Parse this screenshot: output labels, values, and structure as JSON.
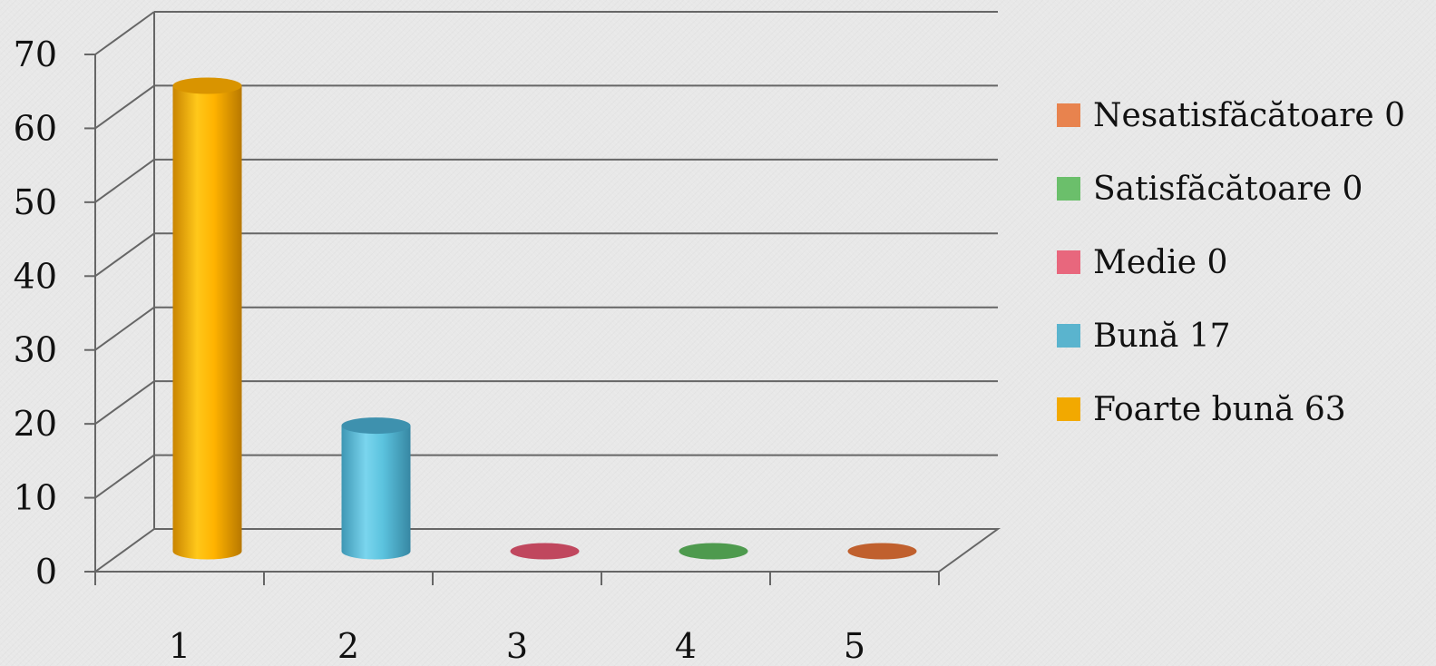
{
  "chart_data": {
    "type": "bar",
    "style": "3d-cylinder",
    "categories": [
      "1",
      "2",
      "3",
      "4",
      "5"
    ],
    "values": [
      63,
      17,
      0,
      0,
      0
    ],
    "bar_colors": [
      "#FFB300",
      "#5BC3DE",
      "#C0475E",
      "#4E9A4E",
      "#C0602E"
    ],
    "ylim": [
      0,
      70
    ],
    "yticks": [
      0,
      10,
      20,
      30,
      40,
      50,
      60,
      70
    ],
    "grid": true,
    "legend_position": "right",
    "legend": [
      {
        "label": "Nesatisfăcătoare 0",
        "color": "#E8834E"
      },
      {
        "label": "Satisfăcătoare 0",
        "color": "#6BBF6B"
      },
      {
        "label": "Medie 0",
        "color": "#E8677D"
      },
      {
        "label": "Bună 17",
        "color": "#5AB4CE"
      },
      {
        "label": "Foarte bună 63",
        "color": "#F2A900"
      }
    ],
    "title": "",
    "xlabel": "",
    "ylabel": ""
  }
}
